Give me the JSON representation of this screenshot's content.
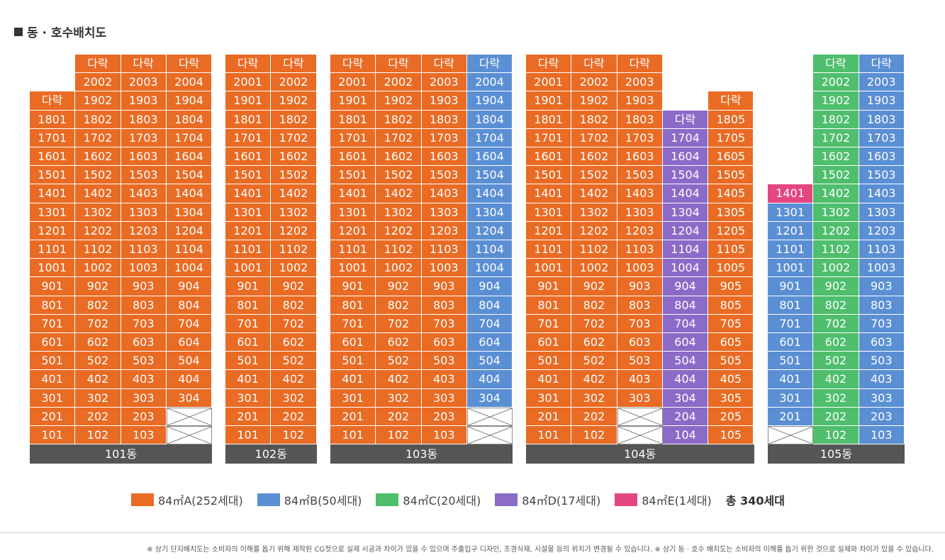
{
  "title": "동 · 호수배치도",
  "colors": {
    "A": "#e96b24",
    "B": "#5b8fd4",
    "C": "#4fbe6d",
    "D": "#8c6ac7",
    "E": "#e34681"
  },
  "buildings": [
    {
      "name": "101동",
      "columns": [
        {
          "top": 19,
          "type": "A",
          "units": {
            "19": "다락",
            "18": "1801",
            "17": "1701",
            "16": "1601",
            "15": "1501",
            "14": "1401",
            "13": "1301",
            "12": "1201",
            "11": "1101",
            "10": "1001",
            "9": "901",
            "8": "801",
            "7": "701",
            "6": "601",
            "5": "501",
            "4": "401",
            "3": "301",
            "2": "201",
            "1": "101"
          }
        },
        {
          "top": 21,
          "type": "A",
          "units": {
            "21": "다락",
            "20": "2002",
            "19": "1902",
            "18": "1802",
            "17": "1702",
            "16": "1602",
            "15": "1502",
            "14": "1402",
            "13": "1302",
            "12": "1202",
            "11": "1102",
            "10": "1002",
            "9": "902",
            "8": "802",
            "7": "702",
            "6": "602",
            "5": "502",
            "4": "402",
            "3": "302",
            "2": "202",
            "1": "102"
          }
        },
        {
          "top": 21,
          "type": "A",
          "units": {
            "21": "다락",
            "20": "2003",
            "19": "1903",
            "18": "1803",
            "17": "1703",
            "16": "1603",
            "15": "1503",
            "14": "1403",
            "13": "1303",
            "12": "1203",
            "11": "1103",
            "10": "1003",
            "9": "903",
            "8": "803",
            "7": "703",
            "6": "603",
            "5": "503",
            "4": "403",
            "3": "303",
            "2": "203",
            "1": "103"
          }
        },
        {
          "top": 21,
          "type": "A",
          "units": {
            "21": "다락",
            "20": "2004",
            "19": "1904",
            "18": "1804",
            "17": "1704",
            "16": "1604",
            "15": "1504",
            "14": "1404",
            "13": "1304",
            "12": "1204",
            "11": "1104",
            "10": "1004",
            "9": "904",
            "8": "804",
            "7": "704",
            "6": "604",
            "5": "504",
            "4": "404",
            "3": "304",
            "2": "X",
            "1": "X"
          }
        }
      ]
    },
    {
      "name": "102동",
      "columns": [
        {
          "top": 21,
          "type": "A",
          "units": {
            "21": "다락",
            "20": "2001",
            "19": "1901",
            "18": "1801",
            "17": "1701",
            "16": "1601",
            "15": "1501",
            "14": "1401",
            "13": "1301",
            "12": "1201",
            "11": "1101",
            "10": "1001",
            "9": "901",
            "8": "801",
            "7": "701",
            "6": "601",
            "5": "501",
            "4": "401",
            "3": "301",
            "2": "201",
            "1": "101"
          }
        },
        {
          "top": 21,
          "type": "A",
          "units": {
            "21": "다락",
            "20": "2002",
            "19": "1902",
            "18": "1802",
            "17": "1702",
            "16": "1602",
            "15": "1502",
            "14": "1402",
            "13": "1302",
            "12": "1202",
            "11": "1102",
            "10": "1002",
            "9": "902",
            "8": "802",
            "7": "702",
            "6": "602",
            "5": "502",
            "4": "402",
            "3": "302",
            "2": "202",
            "1": "102"
          }
        }
      ]
    },
    {
      "name": "103동",
      "columns": [
        {
          "top": 21,
          "type": "A",
          "units": {
            "21": "다락",
            "20": "2001",
            "19": "1901",
            "18": "1801",
            "17": "1701",
            "16": "1601",
            "15": "1501",
            "14": "1401",
            "13": "1301",
            "12": "1201",
            "11": "1101",
            "10": "1001",
            "9": "901",
            "8": "801",
            "7": "701",
            "6": "601",
            "5": "501",
            "4": "401",
            "3": "301",
            "2": "201",
            "1": "101"
          }
        },
        {
          "top": 21,
          "type": "A",
          "units": {
            "21": "다락",
            "20": "2002",
            "19": "1902",
            "18": "1802",
            "17": "1702",
            "16": "1602",
            "15": "1502",
            "14": "1402",
            "13": "1302",
            "12": "1202",
            "11": "1102",
            "10": "1002",
            "9": "902",
            "8": "802",
            "7": "702",
            "6": "602",
            "5": "502",
            "4": "402",
            "3": "302",
            "2": "202",
            "1": "102"
          }
        },
        {
          "top": 21,
          "type": "A",
          "units": {
            "21": "다락",
            "20": "2003",
            "19": "1903",
            "18": "1803",
            "17": "1703",
            "16": "1603",
            "15": "1503",
            "14": "1403",
            "13": "1303",
            "12": "1203",
            "11": "1103",
            "10": "1003",
            "9": "903",
            "8": "803",
            "7": "703",
            "6": "603",
            "5": "503",
            "4": "403",
            "3": "303",
            "2": "203",
            "1": "103"
          }
        },
        {
          "top": 21,
          "type": "B",
          "units": {
            "21": "다락",
            "20": "2004",
            "19": "1904",
            "18": "1804",
            "17": "1704",
            "16": "1604",
            "15": "1504",
            "14": "1404",
            "13": "1304",
            "12": "1204",
            "11": "1104",
            "10": "1004",
            "9": "904",
            "8": "804",
            "7": "704",
            "6": "604",
            "5": "504",
            "4": "404",
            "3": "304",
            "2": "X",
            "1": "X"
          }
        }
      ]
    },
    {
      "name": "104동",
      "columns": [
        {
          "top": 21,
          "type": "A",
          "units": {
            "21": "다락",
            "20": "2001",
            "19": "1901",
            "18": "1801",
            "17": "1701",
            "16": "1601",
            "15": "1501",
            "14": "1401",
            "13": "1301",
            "12": "1201",
            "11": "1101",
            "10": "1001",
            "9": "901",
            "8": "801",
            "7": "701",
            "6": "601",
            "5": "501",
            "4": "401",
            "3": "301",
            "2": "201",
            "1": "101"
          }
        },
        {
          "top": 21,
          "type": "A",
          "units": {
            "21": "다락",
            "20": "2002",
            "19": "1902",
            "18": "1802",
            "17": "1702",
            "16": "1602",
            "15": "1502",
            "14": "1402",
            "13": "1302",
            "12": "1202",
            "11": "1102",
            "10": "1002",
            "9": "902",
            "8": "802",
            "7": "702",
            "6": "602",
            "5": "502",
            "4": "402",
            "3": "302",
            "2": "202",
            "1": "102"
          }
        },
        {
          "top": 21,
          "type": "A",
          "units": {
            "21": "다락",
            "20": "2003",
            "19": "1903",
            "18": "1803",
            "17": "1703",
            "16": "1603",
            "15": "1503",
            "14": "1403",
            "13": "1303",
            "12": "1203",
            "11": "1103",
            "10": "1003",
            "9": "903",
            "8": "803",
            "7": "703",
            "6": "603",
            "5": "503",
            "4": "403",
            "3": "303",
            "2": "X",
            "1": "X"
          }
        },
        {
          "top": 18,
          "type": "D",
          "units": {
            "18": "다락",
            "17": "1704",
            "16": "1604",
            "15": "1504",
            "14": "1404",
            "13": "1304",
            "12": "1204",
            "11": "1104",
            "10": "1004",
            "9": "904",
            "8": "804",
            "7": "704",
            "6": "604",
            "5": "504",
            "4": "404",
            "3": "304",
            "2": "204",
            "1": "104"
          }
        },
        {
          "top": 19,
          "type": "A",
          "units": {
            "19": "다락",
            "18": "1805",
            "17": "1705",
            "16": "1605",
            "15": "1505",
            "14": "1405",
            "13": "1305",
            "12": "1205",
            "11": "1105",
            "10": "1005",
            "9": "905",
            "8": "805",
            "7": "705",
            "6": "605",
            "5": "505",
            "4": "405",
            "3": "305",
            "2": "205",
            "1": "105"
          }
        }
      ]
    },
    {
      "name": "105동",
      "columns": [
        {
          "top": 14,
          "type": "B",
          "units": {
            "14": "1401",
            "13": "1301",
            "12": "1201",
            "11": "1101",
            "10": "1001",
            "9": "901",
            "8": "801",
            "7": "701",
            "6": "601",
            "5": "501",
            "4": "401",
            "3": "301",
            "2": "201",
            "1": "X"
          }
        },
        {
          "top": 21,
          "type": "C",
          "units": {
            "21": "다락",
            "20": "2002",
            "19": "1902",
            "18": "1802",
            "17": "1702",
            "16": "1602",
            "15": "1502",
            "14": "1402",
            "13": "1302",
            "12": "1202",
            "11": "1102",
            "10": "1002",
            "9": "902",
            "8": "802",
            "7": "702",
            "6": "602",
            "5": "502",
            "4": "402",
            "3": "302",
            "2": "202",
            "1": "102"
          }
        },
        {
          "top": 21,
          "type": "B",
          "units": {
            "21": "다락",
            "20": "2003",
            "19": "1903",
            "18": "1803",
            "17": "1703",
            "16": "1603",
            "15": "1503",
            "14": "1403",
            "13": "1303",
            "12": "1203",
            "11": "1103",
            "10": "1003",
            "9": "903",
            "8": "803",
            "7": "703",
            "6": "603",
            "5": "503",
            "4": "403",
            "3": "303",
            "2": "203",
            "1": "103"
          }
        }
      ]
    }
  ],
  "unit_overrides": {
    "105동": {
      "0": {
        "14": "E"
      }
    }
  },
  "legend": [
    {
      "type": "A",
      "label": "84㎡A(252세대)"
    },
    {
      "type": "B",
      "label": "84㎡B(50세대)"
    },
    {
      "type": "C",
      "label": "84㎡C(20세대)"
    },
    {
      "type": "D",
      "label": "84㎡D(17세대)"
    },
    {
      "type": "E",
      "label": "84㎡E(1세대)"
    }
  ],
  "total": "총 340세대",
  "footnote": "※ 상기 단지배치도는 소비자의 이해를 돕기 위해 제작된 CG컷으로 실제 시공과 차이가 있을 수 있으며 주출입구 디자인, 조경식재, 시설물 등의 위치가 변경될 수 있습니다. ※ 상기 동 · 호수 배치도는 소비자의 이해를 돕기 위한 것으로 실제와 차이가 있을 수 있습니다."
}
